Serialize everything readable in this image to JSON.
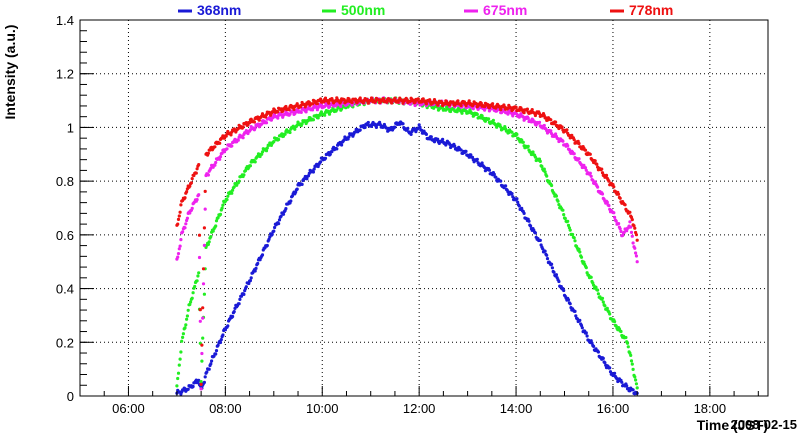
{
  "chart_data": {
    "type": "scatter",
    "title": "",
    "xlabel": "Time (JST)",
    "ylabel": "Intensity (a.u.)",
    "date_label": "2008-02-15",
    "xlim": [
      5.0,
      19.2
    ],
    "ylim": [
      0,
      1.4
    ],
    "grid": true,
    "legend_position": "top",
    "x_ticks": [
      {
        "value": 6,
        "label": "06:00"
      },
      {
        "value": 8,
        "label": "08:00"
      },
      {
        "value": 10,
        "label": "10:00"
      },
      {
        "value": 12,
        "label": "12:00"
      },
      {
        "value": 14,
        "label": "14:00"
      },
      {
        "value": 16,
        "label": "16:00"
      },
      {
        "value": 18,
        "label": "18:00"
      }
    ],
    "y_ticks": [
      {
        "value": 0,
        "label": "0"
      },
      {
        "value": 0.2,
        "label": "0.2"
      },
      {
        "value": 0.4,
        "label": "0.4"
      },
      {
        "value": 0.6,
        "label": "0.6"
      },
      {
        "value": 0.8,
        "label": "0.8"
      },
      {
        "value": 1.0,
        "label": "1"
      },
      {
        "value": 1.2,
        "label": "1.2"
      },
      {
        "value": 1.4,
        "label": "1.4"
      }
    ],
    "series": [
      {
        "name": "368nm",
        "color": "#1a1ad6",
        "x": [
          7.0,
          7.25,
          7.45,
          7.5,
          7.6,
          8.0,
          8.5,
          9.0,
          9.5,
          10.0,
          10.5,
          10.9,
          11.2,
          11.4,
          11.6,
          11.8,
          12.0,
          12.2,
          12.6,
          13.0,
          13.5,
          14.0,
          14.5,
          15.0,
          15.5,
          16.0,
          16.3,
          16.5
        ],
        "y": [
          0.01,
          0.03,
          0.06,
          0.02,
          0.08,
          0.25,
          0.43,
          0.62,
          0.78,
          0.88,
          0.96,
          1.01,
          1.01,
          0.99,
          1.02,
          0.98,
          1.0,
          0.96,
          0.94,
          0.9,
          0.83,
          0.73,
          0.57,
          0.38,
          0.21,
          0.08,
          0.03,
          0.01
        ]
      },
      {
        "name": "500nm",
        "color": "#22ee22",
        "x": [
          7.0,
          7.1,
          7.25,
          7.45,
          7.5,
          7.6,
          8.0,
          8.5,
          9.0,
          9.5,
          10.0,
          10.5,
          11.0,
          11.5,
          12.0,
          12.5,
          13.0,
          13.5,
          14.0,
          14.5,
          15.0,
          15.5,
          16.0,
          16.3,
          16.5
        ],
        "y": [
          0.03,
          0.2,
          0.33,
          0.46,
          0.05,
          0.55,
          0.73,
          0.86,
          0.95,
          1.01,
          1.05,
          1.08,
          1.1,
          1.1,
          1.09,
          1.07,
          1.06,
          1.02,
          0.97,
          0.87,
          0.67,
          0.45,
          0.28,
          0.2,
          0.03
        ]
      },
      {
        "name": "675nm",
        "color": "#ee22ee",
        "x": [
          7.0,
          7.1,
          7.25,
          7.45,
          7.5,
          7.6,
          8.0,
          8.5,
          9.0,
          9.5,
          10.0,
          10.5,
          11.0,
          11.5,
          12.0,
          12.5,
          13.0,
          13.5,
          14.0,
          14.5,
          15.0,
          15.5,
          16.0,
          16.2,
          16.35,
          16.5
        ],
        "y": [
          0.5,
          0.6,
          0.68,
          0.75,
          0.03,
          0.82,
          0.92,
          0.99,
          1.04,
          1.06,
          1.08,
          1.09,
          1.1,
          1.1,
          1.09,
          1.09,
          1.08,
          1.07,
          1.05,
          1.01,
          0.94,
          0.83,
          0.68,
          0.6,
          0.64,
          0.5
        ]
      },
      {
        "name": "778nm",
        "color": "#ee1111",
        "x": [
          7.0,
          7.1,
          7.25,
          7.45,
          7.5,
          7.6,
          8.0,
          8.5,
          9.0,
          9.5,
          10.0,
          10.5,
          11.0,
          11.5,
          12.0,
          12.5,
          13.0,
          13.5,
          14.0,
          14.5,
          15.0,
          15.5,
          16.0,
          16.2,
          16.4,
          16.5
        ],
        "y": [
          0.63,
          0.72,
          0.78,
          0.86,
          0.05,
          0.9,
          0.97,
          1.02,
          1.06,
          1.08,
          1.1,
          1.1,
          1.1,
          1.1,
          1.1,
          1.09,
          1.09,
          1.08,
          1.07,
          1.05,
          0.99,
          0.9,
          0.78,
          0.72,
          0.66,
          0.58
        ]
      }
    ]
  }
}
